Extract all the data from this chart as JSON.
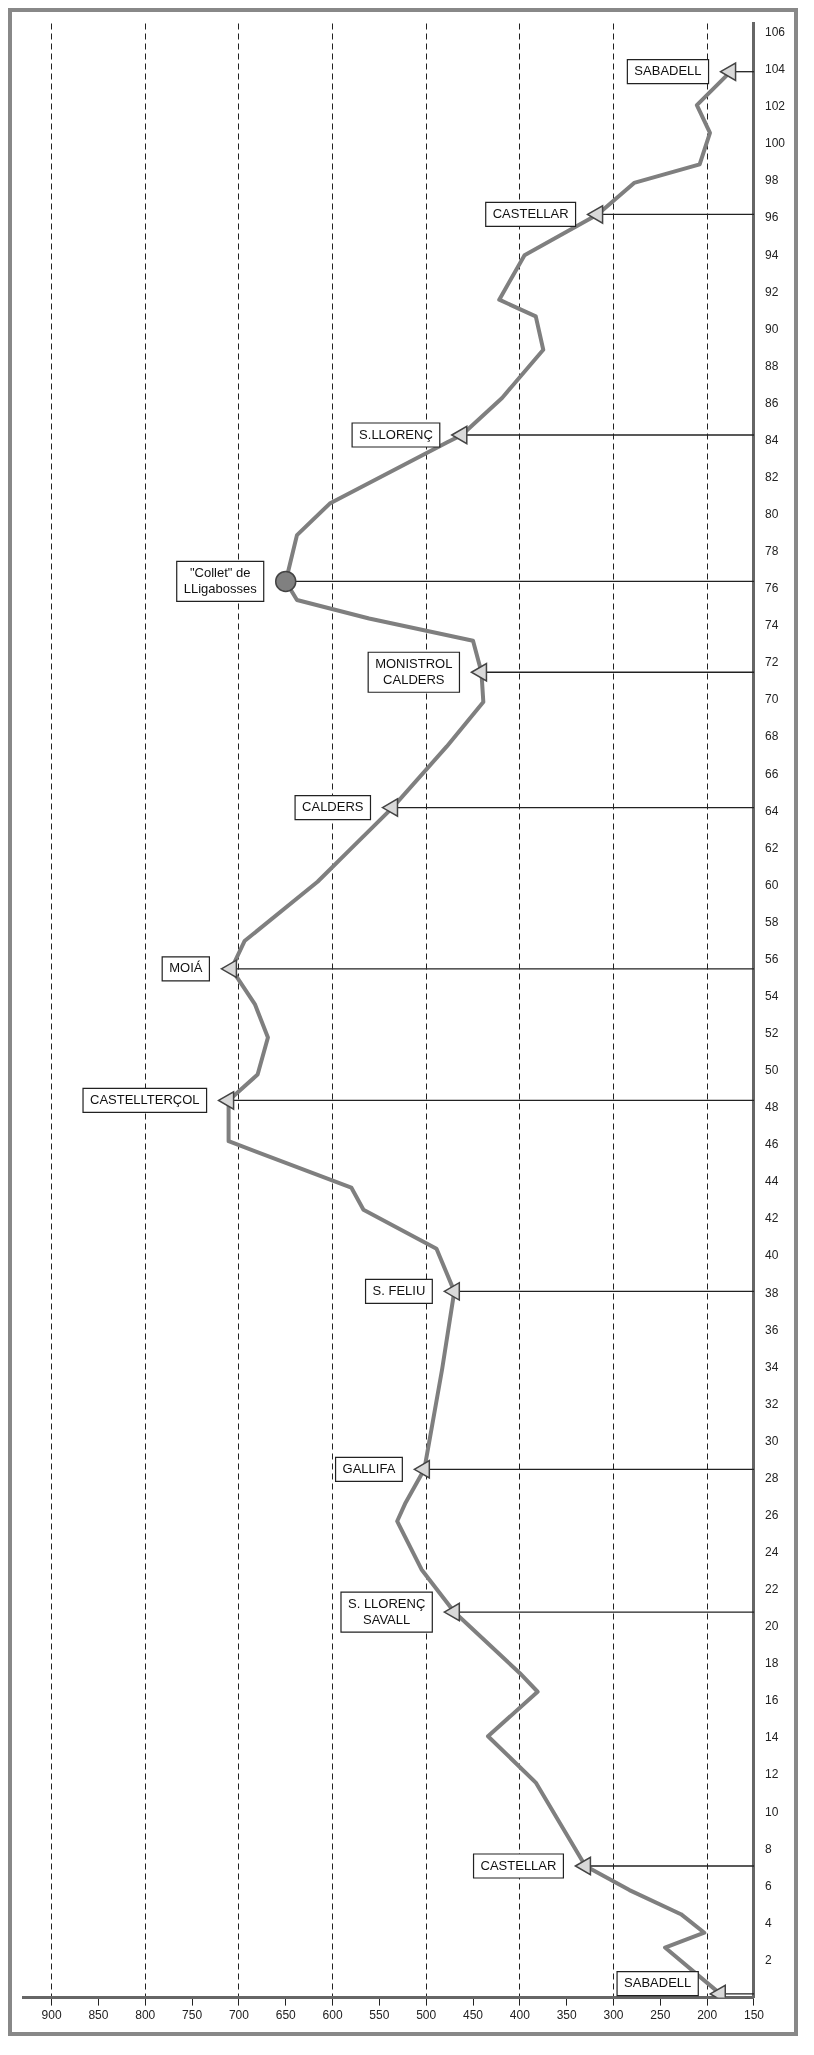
{
  "chart_data": {
    "type": "line",
    "ylim": [
      0,
      106.5
    ],
    "yticks": [
      2,
      4,
      6,
      8,
      10,
      12,
      14,
      16,
      18,
      20,
      22,
      24,
      26,
      28,
      30,
      32,
      34,
      36,
      38,
      40,
      42,
      44,
      46,
      48,
      50,
      52,
      54,
      56,
      58,
      60,
      62,
      64,
      66,
      68,
      70,
      72,
      74,
      76,
      78,
      80,
      82,
      84,
      86,
      88,
      90,
      92,
      94,
      96,
      98,
      100,
      102,
      104,
      106
    ],
    "xlim": [
      930,
      150
    ],
    "xticks": [
      150,
      200,
      250,
      300,
      350,
      400,
      450,
      500,
      550,
      600,
      650,
      700,
      750,
      800,
      850,
      900
    ],
    "grid": "x",
    "legend": false,
    "series": [
      {
        "color": "#7f7f7f",
        "marker": "none",
        "values": [
          0.2,
          2.7,
          3.5,
          4.5,
          5.8,
          7.1,
          11.6,
          14.1,
          16.5,
          17.5,
          20.8,
          23.1,
          25.7,
          26.7,
          28.5,
          33.9,
          38.1,
          40.4,
          42.5,
          43.7,
          46.2,
          48.4,
          49.8,
          51.8,
          53.6,
          55.5,
          57.0,
          60.2,
          62.0,
          64.2,
          67.5,
          69.9,
          71.5,
          73.2,
          74.4,
          75.4,
          76.4,
          78.9,
          80.6,
          83.9,
          84.3,
          86.3,
          88.9,
          90.7,
          91.6,
          94.0,
          96.2,
          97.9,
          98.9,
          100.6,
          102.1,
          103.9
        ],
        "x": [
          186,
          245,
          203,
          228,
          283,
          330,
          383,
          434,
          381,
          400,
          470,
          505,
          531,
          522,
          502,
          483,
          470,
          489,
          567,
          580,
          711,
          711,
          680,
          669,
          683,
          708,
          694,
          616,
          580,
          536,
          478,
          439,
          441,
          450,
          561,
          638,
          650,
          638,
          603,
          478,
          462,
          419,
          375,
          383,
          422,
          395,
          317,
          278,
          208,
          197,
          211,
          175
        ]
      },
      {
        "type": "scatter",
        "color": "#d9d9d9",
        "marker": "triangle",
        "values": [
          0.2,
          7.1,
          20.8,
          28.5,
          38.1,
          48.4,
          55.5,
          64.2,
          71.5,
          84.3,
          96.2,
          103.9
        ],
        "x": [
          186,
          330,
          470,
          502,
          470,
          711,
          708,
          536,
          441,
          462,
          317,
          175
        ],
        "xerrors": [
          [
            150,
            186
          ],
          [
            150,
            330
          ],
          [
            150,
            470
          ],
          [
            150,
            502
          ],
          [
            150,
            470
          ],
          [
            150,
            711
          ],
          [
            150,
            708
          ],
          [
            150,
            536
          ],
          [
            150,
            441
          ],
          [
            150,
            462
          ],
          [
            150,
            317
          ],
          [
            150,
            175
          ]
        ]
      },
      {
        "type": "scatter",
        "color": "#808080",
        "marker": "circle",
        "values": [
          76.4
        ],
        "x": [
          650
        ],
        "xerrors": [
          [
            150,
            650
          ]
        ]
      }
    ],
    "annotations": [
      {
        "text": "SABADELL",
        "x": 186,
        "y": 0.2
      },
      {
        "text": "CASTELLAR",
        "x": 330,
        "y": 7.1
      },
      {
        "text": "S. LLORENÇ\nSAVALL",
        "x": 470,
        "y": 20.8
      },
      {
        "text": "GALLIFA",
        "x": 502,
        "y": 28.5
      },
      {
        "text": "S. FELIU",
        "x": 470,
        "y": 38.1
      },
      {
        "text": "CASTELLTERÇOL",
        "x": 711,
        "y": 48.4
      },
      {
        "text": "MOIÁ",
        "x": 708,
        "y": 55.5
      },
      {
        "text": "CALDERS",
        "x": 536,
        "y": 64.2
      },
      {
        "text": "MONISTROL\nCALDERS",
        "x": 441,
        "y": 71.5
      },
      {
        "text": "\"Collet\" de\nLLigabosses",
        "x": 650,
        "y": 76.4
      },
      {
        "text": "S.LLORENÇ",
        "x": 462,
        "y": 84.3
      },
      {
        "text": "CASTELLAR",
        "x": 317,
        "y": 96.2
      },
      {
        "text": "SABADELL",
        "x": 175,
        "y": 103.9
      }
    ]
  }
}
